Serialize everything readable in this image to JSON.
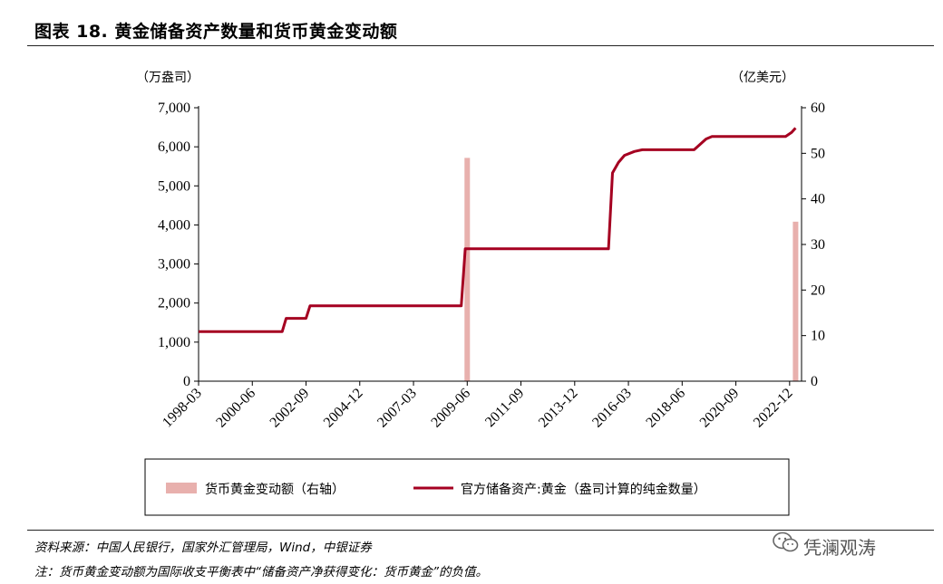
{
  "header": {
    "title": "图表 18. 黄金储备资产数量和货币黄金变动额"
  },
  "chart_data": {
    "type": "bar+line",
    "left_unit": "（万盎司）",
    "right_unit": "（亿美元）",
    "left_axis": {
      "ylim": [
        0,
        7000
      ],
      "ticks": [
        "0",
        "1,000",
        "2,000",
        "3,000",
        "4,000",
        "5,000",
        "6,000",
        "7,000"
      ]
    },
    "right_axis": {
      "ylim": [
        0,
        60
      ],
      "ticks": [
        "0",
        "10",
        "20",
        "30",
        "40",
        "50",
        "60"
      ]
    },
    "x_axis": {
      "start": "1998-03",
      "end": "2023-06",
      "tick_labels": [
        "1998-03",
        "2000-06",
        "2002-09",
        "2004-12",
        "2007-03",
        "2009-06",
        "2011-09",
        "2013-12",
        "2016-03",
        "2018-06",
        "2020-09",
        "2022-12"
      ]
    },
    "series": [
      {
        "name": "货币黄金变动额（右轴）",
        "type": "bar",
        "axis": "right",
        "color": "#e8b0ad",
        "points": [
          {
            "x": "2009-06",
            "y": 49
          },
          {
            "x": "2023-03",
            "y": 35
          }
        ]
      },
      {
        "name": "官方储备资产:黄金（盎司计算的纯金数量）",
        "type": "line",
        "axis": "left",
        "color": "#a50021",
        "points": [
          {
            "x": "1998-03",
            "y": 1267
          },
          {
            "x": "2001-09",
            "y": 1267
          },
          {
            "x": "2001-11",
            "y": 1608
          },
          {
            "x": "2002-09",
            "y": 1608
          },
          {
            "x": "2002-11",
            "y": 1929
          },
          {
            "x": "2009-03",
            "y": 1929
          },
          {
            "x": "2009-05",
            "y": 3389
          },
          {
            "x": "2015-05",
            "y": 3389
          },
          {
            "x": "2015-07",
            "y": 5331
          },
          {
            "x": "2015-10",
            "y": 5600
          },
          {
            "x": "2016-01",
            "y": 5780
          },
          {
            "x": "2016-06",
            "y": 5880
          },
          {
            "x": "2016-10",
            "y": 5924
          },
          {
            "x": "2018-12",
            "y": 5924
          },
          {
            "x": "2019-06",
            "y": 6200
          },
          {
            "x": "2019-09",
            "y": 6264
          },
          {
            "x": "2022-10",
            "y": 6264
          },
          {
            "x": "2023-01",
            "y": 6367
          },
          {
            "x": "2023-03",
            "y": 6480
          }
        ]
      }
    ]
  },
  "legend": {
    "bar_label": "货币黄金变动额（右轴）",
    "line_label": "官方储备资产:黄金（盎司计算的纯金数量）"
  },
  "footer": {
    "source": "资料来源：中国人民银行，国家外汇管理局，Wind，中银证券",
    "note": "注：货币黄金变动额为国际收支平衡表中“储备资产净获得变化：货币黄金”的负值。"
  },
  "watermark": {
    "text": "凭澜观涛",
    "icon": "wechat-icon"
  }
}
